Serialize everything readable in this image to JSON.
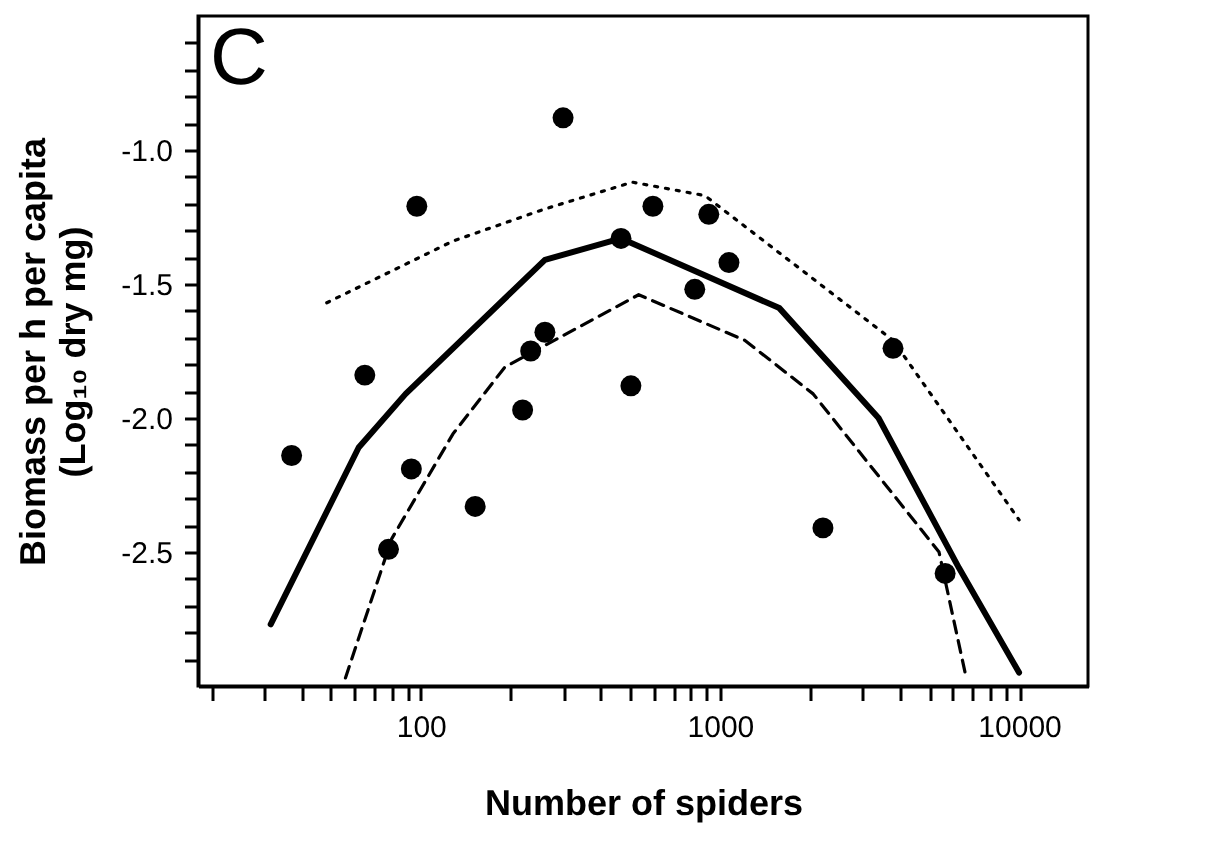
{
  "chart_data": {
    "type": "scatter",
    "xlabel": "Number of spiders",
    "ylabel": [
      "Biomass per h per capita",
      "(Log₁₀ dry mg)"
    ],
    "annotations": [
      "C"
    ],
    "log": "x",
    "grid": false,
    "xlim": [
      18,
      17000
    ],
    "ylim": [
      -3.0,
      -0.5
    ],
    "xticks": [
      {
        "value": 20,
        "label": null
      },
      {
        "value": 30,
        "label": null
      },
      {
        "value": 40,
        "label": null
      },
      {
        "value": 50,
        "label": null
      },
      {
        "value": 60,
        "label": null
      },
      {
        "value": 70,
        "label": null
      },
      {
        "value": 80,
        "label": null
      },
      {
        "value": 90,
        "label": null
      },
      100,
      {
        "value": 200,
        "label": null
      },
      {
        "value": 300,
        "label": null
      },
      {
        "value": 400,
        "label": null
      },
      {
        "value": 500,
        "label": null
      },
      {
        "value": 600,
        "label": null
      },
      {
        "value": 700,
        "label": null
      },
      {
        "value": 800,
        "label": null
      },
      {
        "value": 900,
        "label": null
      },
      1000,
      {
        "value": 2000,
        "label": null
      },
      {
        "value": 3000,
        "label": null
      },
      {
        "value": 4000,
        "label": null
      },
      {
        "value": 5000,
        "label": null
      },
      {
        "value": 6000,
        "label": null
      },
      {
        "value": 7000,
        "label": null
      },
      {
        "value": 8000,
        "label": null
      },
      {
        "value": 9000,
        "label": null
      },
      10000
    ],
    "yticks": [
      {
        "value": -2.9,
        "label": null
      },
      {
        "value": -2.8,
        "label": null
      },
      {
        "value": -2.7,
        "label": null
      },
      {
        "value": -2.6,
        "label": null
      },
      {
        "value": -2.5,
        "label": "-2.5"
      },
      {
        "value": -2.4,
        "label": null
      },
      {
        "value": -2.3,
        "label": null
      },
      {
        "value": -2.2,
        "label": null
      },
      {
        "value": -2.1,
        "label": null
      },
      {
        "value": -2.0,
        "label": "-2.0"
      },
      {
        "value": -1.9,
        "label": null
      },
      {
        "value": -1.8,
        "label": null
      },
      {
        "value": -1.7,
        "label": null
      },
      {
        "value": -1.6,
        "label": null
      },
      {
        "value": -1.5,
        "label": "-1.5"
      },
      {
        "value": -1.4,
        "label": null
      },
      {
        "value": -1.3,
        "label": null
      },
      {
        "value": -1.2,
        "label": null
      },
      {
        "value": -1.1,
        "label": null
      },
      {
        "value": -1.0,
        "label": "-1.0"
      },
      {
        "value": -0.9,
        "label": null
      },
      {
        "value": -0.8,
        "label": null
      },
      {
        "value": -0.7,
        "label": null
      },
      {
        "value": -0.6,
        "label": null
      }
    ],
    "series": [
      {
        "type": "scatter",
        "marker": "circle",
        "color": "#000000",
        "x": [
          37,
          65,
          78,
          93,
          97,
          152,
          219,
          233,
          260,
          299,
          467,
          504,
          597,
          824,
          918,
          1072,
          2210,
          3790,
          5660
        ],
        "values": [
          -2.14,
          -1.84,
          -2.49,
          -2.19,
          -1.21,
          -2.33,
          -1.97,
          -1.75,
          -1.68,
          -0.88,
          -1.33,
          -1.88,
          -1.21,
          -1.52,
          -1.24,
          -1.42,
          -2.41,
          -1.74,
          -2.58
        ]
      },
      {
        "type": "line",
        "line_style": "solid",
        "color": "#000000",
        "x": [
          31.5,
          62,
          89,
          260,
          467,
          1580,
          3390,
          6300,
          10000
        ],
        "values": [
          -2.77,
          -2.11,
          -1.91,
          -1.41,
          -1.33,
          -1.59,
          -2.0,
          -2.56,
          -2.95
        ]
      },
      {
        "type": "line",
        "line_style": "dotted",
        "color": "#000000",
        "x": [
          48.5,
          128,
          260,
          510,
          890,
          3790,
          10000
        ],
        "values": [
          -1.57,
          -1.34,
          -1.22,
          -1.12,
          -1.17,
          -1.71,
          -2.38
        ]
      },
      {
        "type": "line",
        "line_style": "dashed",
        "color": "#000000",
        "x": [
          56,
          80,
          128,
          191,
          535,
          1210,
          2050,
          5400,
          6600
        ],
        "values": [
          -2.97,
          -2.45,
          -2.06,
          -1.81,
          -1.54,
          -1.71,
          -1.91,
          -2.5,
          -2.95
        ]
      }
    ]
  }
}
